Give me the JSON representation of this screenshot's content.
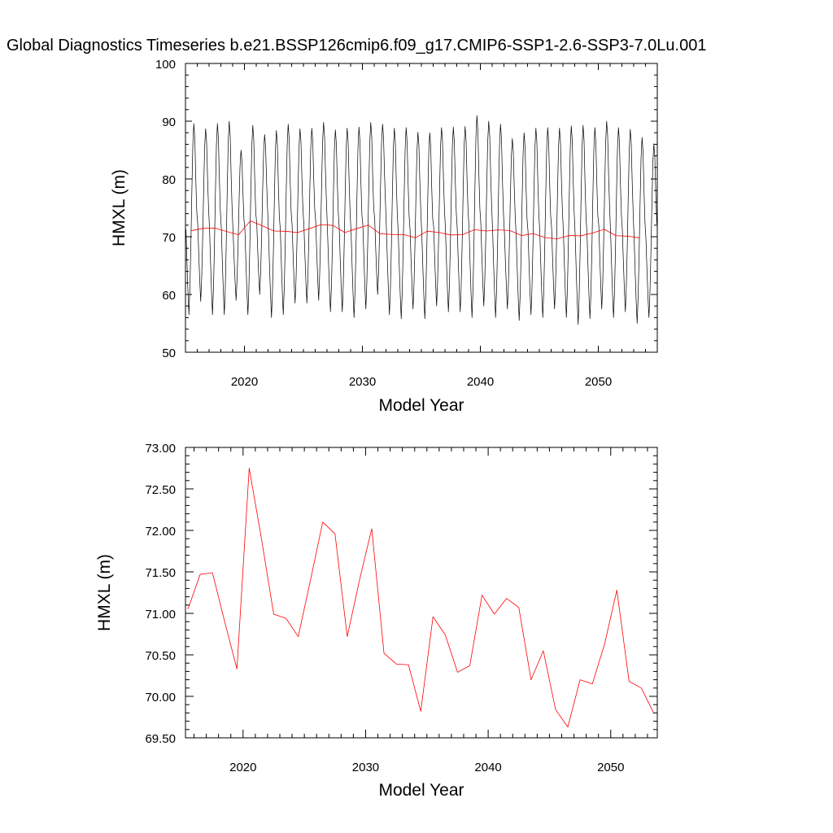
{
  "title": "Global Diagnostics Timeseries b.e21.BSSP126cmip6.f09_g17.CMIP6-SSP1-2.6-SSP3-7.0Lu.001",
  "chart_data": [
    {
      "type": "line",
      "xlabel": "Model Year",
      "ylabel": "HMXL (m)",
      "xlim": [
        2015.0,
        2055.0
      ],
      "ylim": [
        50,
        100
      ],
      "xticks": [
        2020,
        2030,
        2040,
        2050
      ],
      "yticks": [
        50,
        60,
        70,
        80,
        90,
        100
      ],
      "ytick_labels": [
        "50",
        "60",
        "70",
        "80",
        "90",
        "100"
      ],
      "grid": false,
      "series": [
        {
          "color": "#000000",
          "monthly_cycle": [
            71.5,
            66.0,
            61.0,
            57.0,
            61.5,
            69.0,
            78.0,
            86.0,
            89.5,
            87.0,
            80.0,
            74.5
          ],
          "annual_maxima": [
            89.6,
            88.7,
            89.6,
            90.0,
            85.0,
            89.3,
            87.7,
            88.4,
            89.5,
            88.7,
            88.8,
            89.8,
            88.5,
            88.8,
            89.0,
            89.8,
            89.5,
            88.8,
            88.9,
            88.1,
            88.0,
            88.9,
            89.0,
            89.1,
            91.0,
            90.0,
            89.5,
            87.0,
            88.0,
            88.8,
            88.9,
            88.8,
            89.2,
            89.3,
            88.9,
            90.0,
            88.9,
            88.6,
            87.2,
            86.1
          ],
          "annual_minima": [
            56.5,
            58.8,
            56.5,
            56.5,
            59.0,
            56.5,
            60.0,
            56.0,
            56.5,
            58.5,
            58.5,
            59.0,
            57.0,
            57.0,
            56.0,
            57.5,
            60.0,
            56.5,
            55.8,
            57.5,
            55.8,
            58.0,
            57.0,
            57.0,
            56.0,
            58.0,
            56.0,
            57.5,
            55.5,
            56.5,
            56.0,
            57.5,
            56.0,
            54.8,
            55.8,
            57.5,
            56.0,
            57.0,
            55.0,
            56.0
          ]
        },
        {
          "color": "#ff0000",
          "x": [
            2015.5,
            2016.5,
            2017.5,
            2018.5,
            2019.5,
            2020.5,
            2021.5,
            2022.5,
            2023.5,
            2024.5,
            2025.5,
            2026.5,
            2027.5,
            2028.5,
            2029.5,
            2030.5,
            2031.5,
            2032.5,
            2033.5,
            2034.5,
            2035.5,
            2036.5,
            2037.5,
            2038.5,
            2039.5,
            2040.5,
            2041.5,
            2042.5,
            2043.5,
            2044.5,
            2045.5,
            2046.5,
            2047.5,
            2048.5,
            2049.5,
            2050.5,
            2051.5,
            2052.5,
            2053.5
          ],
          "values": [
            71.05,
            71.47,
            71.49,
            70.9,
            70.33,
            72.75,
            71.9,
            70.99,
            70.94,
            70.72,
            71.4,
            72.1,
            71.96,
            70.72,
            71.4,
            72.02,
            70.52,
            70.39,
            70.38,
            69.82,
            70.96,
            70.74,
            70.29,
            70.37,
            71.22,
            70.99,
            71.18,
            71.07,
            70.2,
            70.55,
            69.84,
            69.63,
            70.2,
            70.15,
            70.63,
            71.28,
            70.18,
            70.1,
            69.8
          ]
        }
      ]
    },
    {
      "type": "line",
      "xlabel": "Model Year",
      "ylabel": "HMXL (m)",
      "xlim": [
        2015.3,
        2053.8
      ],
      "ylim": [
        69.5,
        73.0
      ],
      "xticks": [
        2020,
        2030,
        2040,
        2050
      ],
      "yticks": [
        69.5,
        70.0,
        70.5,
        71.0,
        71.5,
        72.0,
        72.5,
        73.0
      ],
      "ytick_labels": [
        "69.50",
        "70.00",
        "70.50",
        "71.00",
        "71.50",
        "72.00",
        "72.50",
        "73.00"
      ],
      "grid": false,
      "series": [
        {
          "color": "#ff0000",
          "x": [
            2015.5,
            2016.5,
            2017.5,
            2018.5,
            2019.5,
            2020.5,
            2021.5,
            2022.5,
            2023.5,
            2024.5,
            2025.5,
            2026.5,
            2027.5,
            2028.5,
            2029.5,
            2030.5,
            2031.5,
            2032.5,
            2033.5,
            2034.5,
            2035.5,
            2036.5,
            2037.5,
            2038.5,
            2039.5,
            2040.5,
            2041.5,
            2042.5,
            2043.5,
            2044.5,
            2045.5,
            2046.5,
            2047.5,
            2048.5,
            2049.5,
            2050.5,
            2051.5,
            2052.5,
            2053.5
          ],
          "values": [
            71.05,
            71.47,
            71.49,
            70.9,
            70.33,
            72.75,
            71.9,
            70.99,
            70.94,
            70.72,
            71.4,
            72.1,
            71.96,
            70.72,
            71.4,
            72.02,
            70.52,
            70.39,
            70.38,
            69.82,
            70.96,
            70.74,
            70.29,
            70.37,
            71.22,
            70.99,
            71.18,
            71.07,
            70.2,
            70.55,
            69.84,
            69.63,
            70.2,
            70.15,
            70.63,
            71.28,
            70.18,
            70.1,
            69.8
          ]
        }
      ]
    }
  ]
}
